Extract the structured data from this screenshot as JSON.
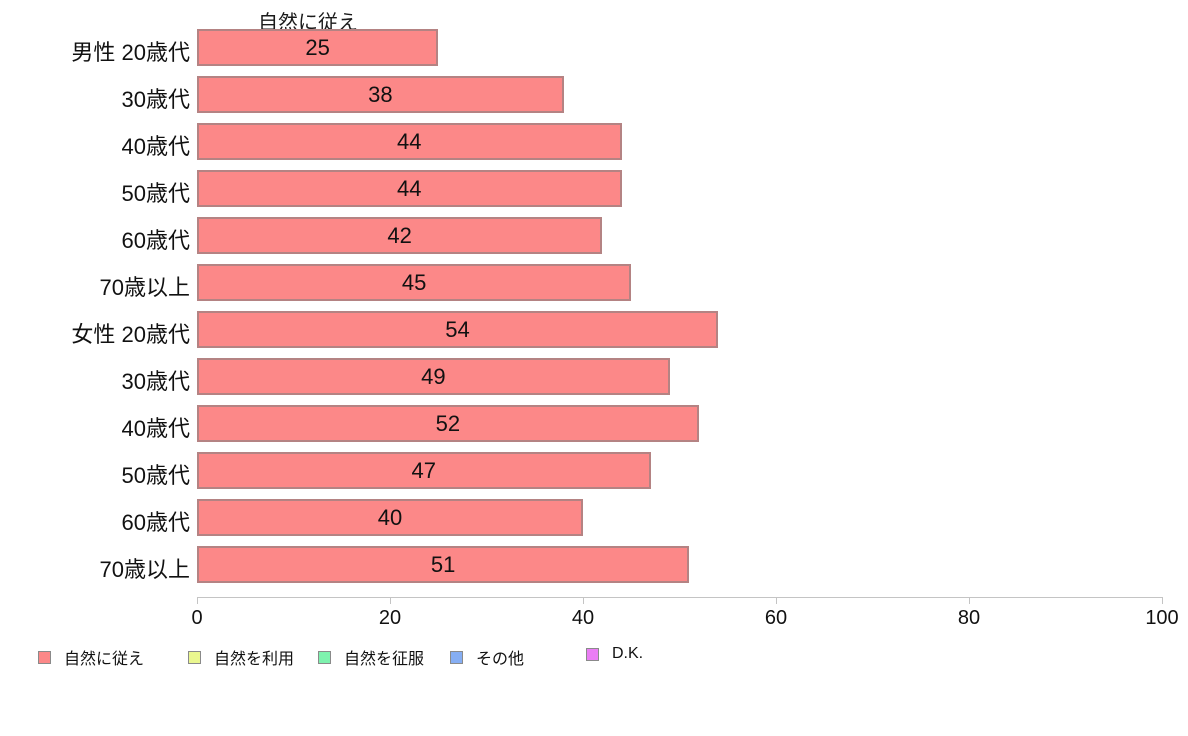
{
  "chart_data": {
    "type": "bar",
    "orientation": "horizontal",
    "title": "自然に従え",
    "categories": [
      "男性 20歳代",
      "30歳代",
      "40歳代",
      "50歳代",
      "60歳代",
      "70歳以上",
      "女性 20歳代",
      "30歳代",
      "40歳代",
      "50歳代",
      "60歳代",
      "70歳以上"
    ],
    "values": [
      25,
      38,
      44,
      44,
      42,
      45,
      54,
      49,
      52,
      47,
      40,
      51
    ],
    "value_labels": [
      "25",
      "38",
      "44",
      "44",
      "42",
      "45",
      "54",
      "49",
      "52",
      "47",
      "40",
      "51"
    ],
    "xlabel": "",
    "ylabel": "",
    "xlim": [
      0,
      100
    ],
    "x_ticks": [
      0,
      20,
      40,
      60,
      80,
      100
    ],
    "x_tick_labels": [
      "0",
      "20",
      "40",
      "60",
      "80",
      "100"
    ],
    "grid": false,
    "bar_color": "#fc8888",
    "bar_border_color": "#b48383",
    "axis_color": "#c4c4c4",
    "legend_position": "bottom",
    "legend": [
      {
        "label": "自然に従え",
        "color": "#fc8888"
      },
      {
        "label": "自然を利用",
        "color": "#eaf78f"
      },
      {
        "label": "自然を征服",
        "color": "#7ef2ae"
      },
      {
        "label": "その他",
        "color": "#86aef3"
      },
      {
        "label": "D.K.",
        "color": "#ea7df4"
      }
    ]
  }
}
